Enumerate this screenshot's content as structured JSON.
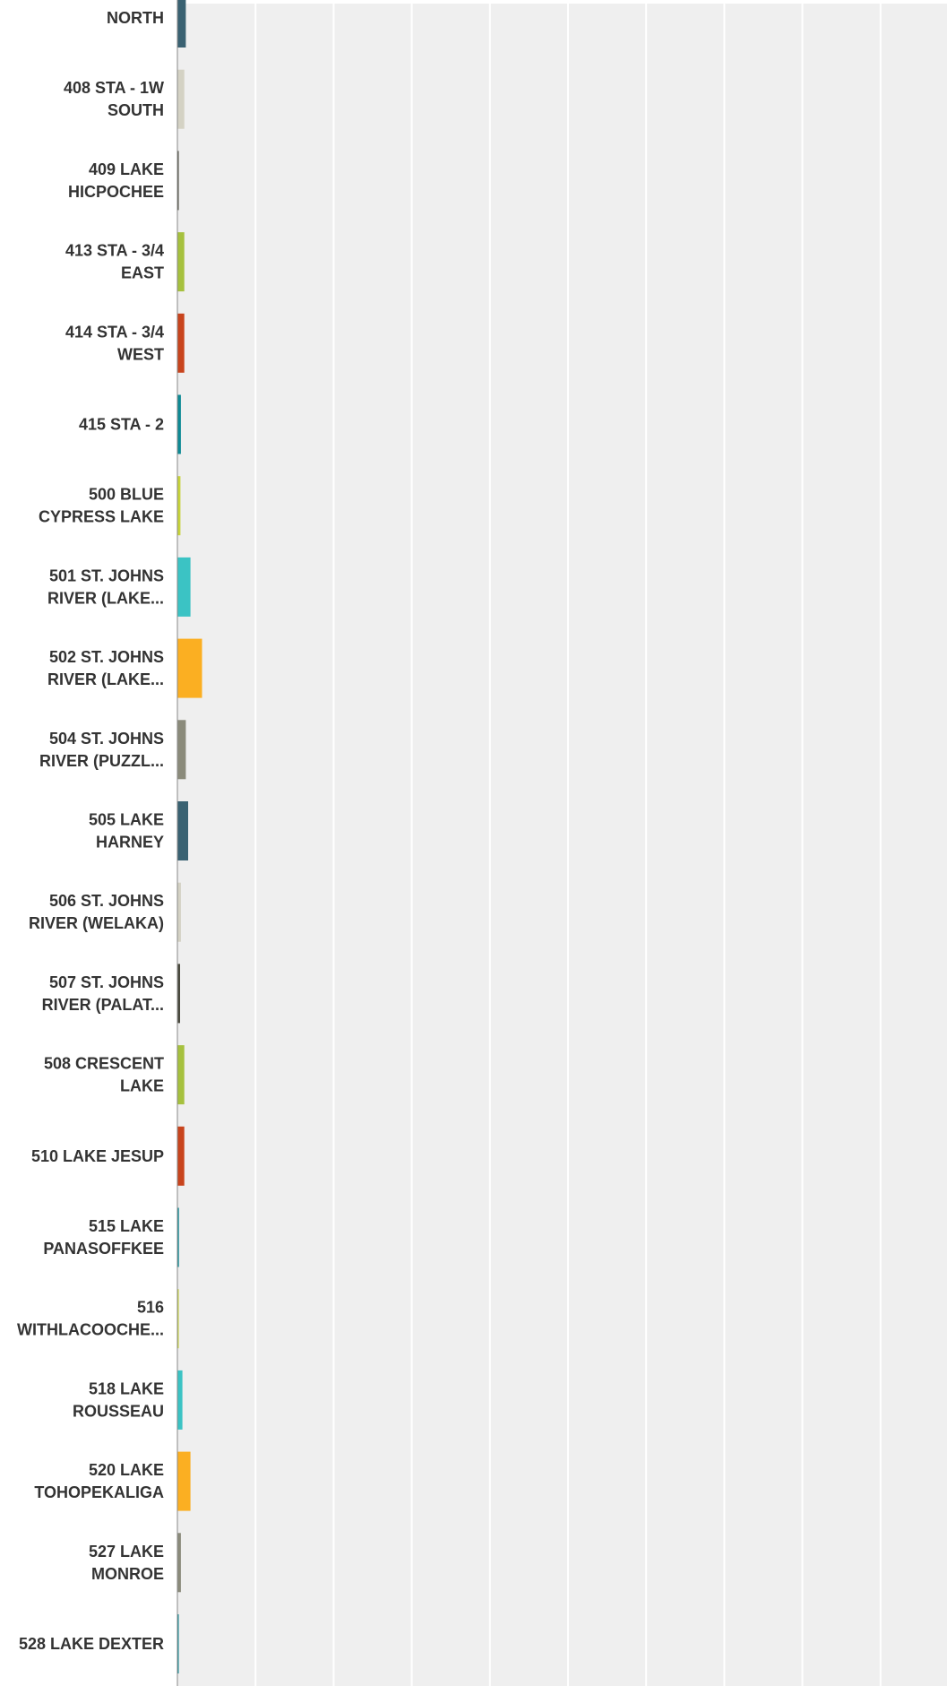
{
  "chart_data": {
    "type": "bar",
    "orientation": "horizontal",
    "title": "",
    "xlabel": "",
    "ylabel": "",
    "grid": true,
    "xlim": [
      0,
      100
    ],
    "categories": [
      [
        "NORTH"
      ],
      [
        "408 STA - 1W",
        "SOUTH"
      ],
      [
        "409 LAKE",
        "HICPOCHEE"
      ],
      [
        "413 STA - 3/4",
        "EAST"
      ],
      [
        "414 STA - 3/4",
        "WEST"
      ],
      [
        "415 STA - 2"
      ],
      [
        "500 BLUE",
        "CYPRESS LAKE"
      ],
      [
        "501 ST. JOHNS",
        "RIVER (LAKE..."
      ],
      [
        "502 ST. JOHNS",
        "RIVER (LAKE..."
      ],
      [
        "504 ST. JOHNS",
        "RIVER (PUZZL..."
      ],
      [
        "505 LAKE",
        "HARNEY"
      ],
      [
        "506 ST. JOHNS",
        "RIVER (WELAKA)"
      ],
      [
        "507 ST. JOHNS",
        "RIVER (PALAT..."
      ],
      [
        "508 CRESCENT",
        "LAKE"
      ],
      [
        "510 LAKE JESUP"
      ],
      [
        "515 LAKE",
        "PANASOFFKEE"
      ],
      [
        "516",
        "WITHLACOOCHE..."
      ],
      [
        "518 LAKE",
        "ROUSSEAU"
      ],
      [
        "520 LAKE",
        "TOHOPEKALIGA"
      ],
      [
        "527 LAKE",
        "MONROE"
      ],
      [
        "528 LAKE DEXTER"
      ]
    ],
    "values": [
      1.1,
      0.9,
      0.15,
      0.9,
      0.9,
      0.45,
      0.4,
      1.7,
      3.2,
      1.1,
      1.4,
      0.45,
      0.35,
      0.9,
      0.9,
      0.2,
      0.1,
      0.65,
      1.7,
      0.45,
      0.1
    ],
    "colors": [
      "#3a6272",
      "#d4d2c4",
      "#4a4a3e",
      "#a6c13e",
      "#c8441d",
      "#0e8a95",
      "#c8d43a",
      "#3bc3c4",
      "#fbaf22",
      "#8b8b7b",
      "#3a6272",
      "#d4d2c4",
      "#4a4a3e",
      "#a6c13e",
      "#c8441d",
      "#0e8a95",
      "#c8d43a",
      "#3bc3c4",
      "#fbaf22",
      "#8b8b7b",
      "#0e8a95"
    ],
    "plot_background": "#efefef",
    "gridline_color": "#ffffff",
    "axis_color": "#888888",
    "label_color": "#333333"
  }
}
